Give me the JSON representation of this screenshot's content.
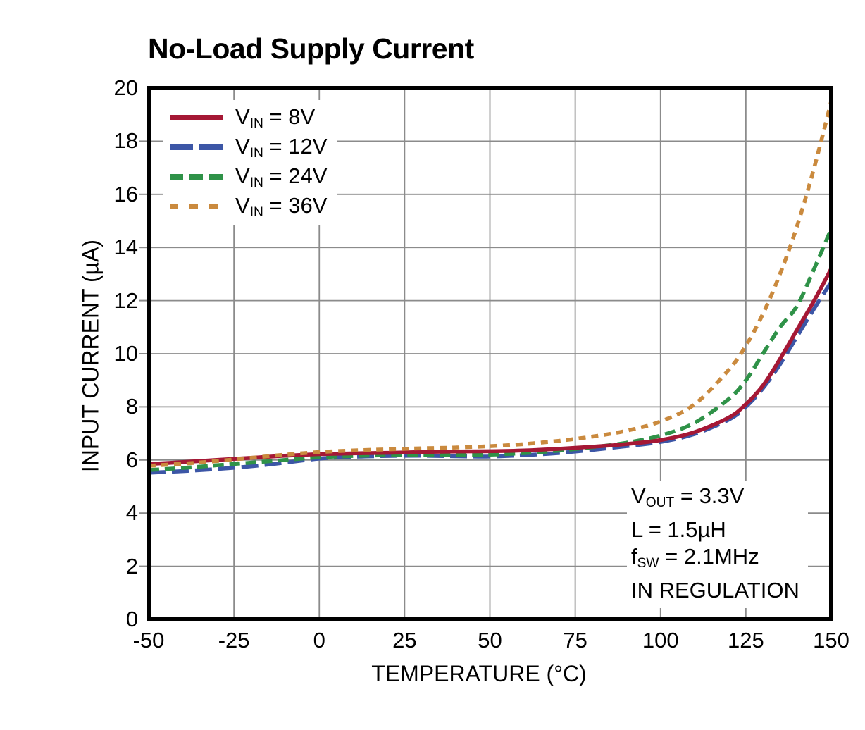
{
  "chart_data": {
    "type": "line",
    "title": "No-Load Supply Current",
    "xlabel": "TEMPERATURE (°C)",
    "ylabel": "INPUT CURRENT (µA)",
    "xlim": [
      -50,
      150
    ],
    "ylim": [
      0,
      20
    ],
    "xticks": [
      -50,
      -25,
      0,
      25,
      50,
      75,
      100,
      125,
      150
    ],
    "yticks": [
      0,
      2,
      4,
      6,
      8,
      10,
      12,
      14,
      16,
      18,
      20
    ],
    "grid": true,
    "legend_position": "top-left-inside",
    "x": [
      -50,
      -40,
      -30,
      -20,
      -10,
      0,
      10,
      20,
      30,
      40,
      50,
      60,
      70,
      80,
      90,
      100,
      110,
      120,
      125,
      130,
      135,
      140,
      145,
      150
    ],
    "series": [
      {
        "name": "VIN = 8V",
        "label_parts": [
          {
            "t": "V"
          },
          {
            "t": "IN",
            "sub": true
          },
          {
            "t": " = 8V"
          }
        ],
        "color": "#A51835",
        "dash": "solid",
        "values": [
          5.85,
          5.92,
          6.0,
          6.08,
          6.16,
          6.22,
          6.25,
          6.27,
          6.3,
          6.32,
          6.33,
          6.36,
          6.42,
          6.5,
          6.6,
          6.75,
          7.05,
          7.6,
          8.1,
          8.8,
          9.8,
          10.9,
          12.0,
          13.2
        ]
      },
      {
        "name": "VIN = 12V",
        "label_parts": [
          {
            "t": "V"
          },
          {
            "t": "IN",
            "sub": true
          },
          {
            "t": " = 12V"
          }
        ],
        "color": "#3C56A6",
        "dash": "long-dash",
        "values": [
          5.52,
          5.58,
          5.66,
          5.76,
          5.9,
          6.05,
          6.12,
          6.15,
          6.16,
          6.14,
          6.13,
          6.18,
          6.26,
          6.38,
          6.52,
          6.68,
          6.98,
          7.52,
          8.0,
          8.7,
          9.6,
          10.65,
          11.7,
          12.7
        ]
      },
      {
        "name": "VIN = 24V",
        "label_parts": [
          {
            "t": "V"
          },
          {
            "t": "IN",
            "sub": true
          },
          {
            "t": " = 24V"
          }
        ],
        "color": "#2F9248",
        "dash": "medium-dash",
        "values": [
          5.62,
          5.7,
          5.8,
          5.9,
          6.0,
          6.1,
          6.15,
          6.18,
          6.2,
          6.2,
          6.2,
          6.26,
          6.35,
          6.48,
          6.65,
          6.92,
          7.4,
          8.3,
          9.0,
          10.0,
          11.0,
          11.8,
          13.2,
          14.7
        ]
      },
      {
        "name": "VIN = 36V",
        "label_parts": [
          {
            "t": "V"
          },
          {
            "t": "IN",
            "sub": true
          },
          {
            "t": " = 36V"
          }
        ],
        "color": "#CA8A3E",
        "dash": "short-dash",
        "values": [
          5.78,
          5.86,
          5.96,
          6.08,
          6.2,
          6.3,
          6.36,
          6.4,
          6.44,
          6.47,
          6.52,
          6.6,
          6.72,
          6.88,
          7.1,
          7.45,
          8.1,
          9.4,
          10.3,
          11.5,
          13.0,
          14.8,
          17.0,
          19.5
        ]
      }
    ],
    "annotation": {
      "lines": [
        [
          {
            "t": "V"
          },
          {
            "t": "OUT",
            "sub": true
          },
          {
            "t": " = 3.3V"
          }
        ],
        [
          {
            "t": "L = 1.5µH"
          }
        ],
        [
          {
            "t": "f"
          },
          {
            "t": "SW",
            "sub": true
          },
          {
            "t": " = 2.1MHz"
          }
        ],
        [
          {
            "t": "IN REGULATION"
          }
        ]
      ]
    },
    "colors": {
      "grid": "#8B8B8B",
      "frame": "#000000",
      "background": "#FFFFFF"
    }
  }
}
